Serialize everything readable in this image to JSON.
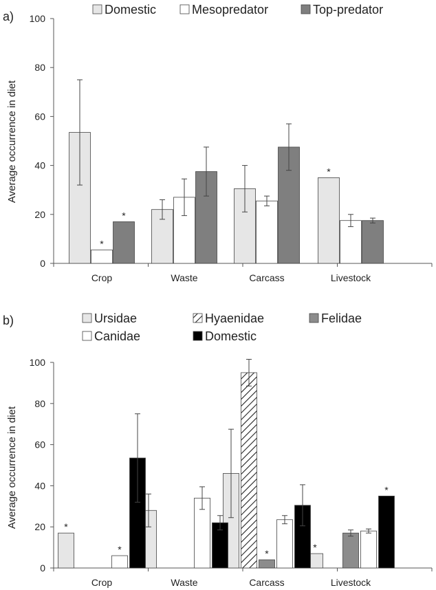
{
  "chart_data": [
    {
      "panel_label": "a)",
      "type": "bar",
      "ylabel": "Average occurrence in diet",
      "ylim": [
        0,
        100
      ],
      "yticks": [
        "0",
        "20",
        "40",
        "60",
        "80",
        "100"
      ],
      "grid": false,
      "legend_position": "top",
      "categories": [
        "Crop",
        "Waste",
        "Carcass",
        "Livestock"
      ],
      "series": [
        {
          "name": "Domestic",
          "color": "#e6e6e6",
          "pattern": "solid",
          "values": [
            53.5,
            22,
            30.5,
            35
          ],
          "err": [
            21.5,
            4,
            9.5,
            0
          ],
          "star": [
            false,
            false,
            false,
            true
          ]
        },
        {
          "name": "Mesopredator",
          "color": "#ffffff",
          "pattern": "solid",
          "values": [
            5.5,
            27,
            25.5,
            17.5
          ],
          "err": [
            0,
            7.5,
            2,
            2.5
          ],
          "star": [
            true,
            false,
            false,
            false
          ]
        },
        {
          "name": "Top-predator",
          "color": "#7f7f7f",
          "pattern": "solid",
          "values": [
            17,
            37.5,
            47.5,
            17.5
          ],
          "err": [
            0,
            10,
            9.5,
            1
          ],
          "star": [
            true,
            false,
            false,
            false
          ]
        }
      ]
    },
    {
      "panel_label": "b)",
      "type": "bar",
      "ylabel": "Average occurrence in diet",
      "ylim": [
        0,
        100
      ],
      "yticks": [
        "0",
        "20",
        "40",
        "60",
        "80",
        "100"
      ],
      "grid": false,
      "legend_position": "top",
      "categories": [
        "Crop",
        "Waste",
        "Carcass",
        "Livestock"
      ],
      "series": [
        {
          "name": "Ursidae",
          "color": "#e6e6e6",
          "pattern": "solid",
          "values": [
            17,
            28,
            46,
            7
          ],
          "err": [
            0,
            8,
            21.5,
            0
          ],
          "star": [
            true,
            false,
            false,
            true
          ]
        },
        {
          "name": "Hyaenidae",
          "color": "#ffffff",
          "pattern": "hatch",
          "values": [
            null,
            null,
            95,
            null
          ],
          "err": [
            0,
            0,
            6.5,
            0
          ],
          "star": [
            false,
            false,
            false,
            false
          ]
        },
        {
          "name": "Felidae",
          "color": "#8c8c8c",
          "pattern": "solid",
          "values": [
            null,
            null,
            4,
            17
          ],
          "err": [
            0,
            0,
            0,
            1.5
          ],
          "star": [
            false,
            false,
            true,
            false
          ]
        },
        {
          "name": "Canidae",
          "color": "#ffffff",
          "pattern": "solid",
          "values": [
            6,
            34,
            23.5,
            18
          ],
          "err": [
            0,
            5.5,
            2,
            1
          ],
          "star": [
            true,
            false,
            false,
            false
          ]
        },
        {
          "name": "Domestic",
          "color": "#000000",
          "pattern": "solid",
          "values": [
            53.5,
            22,
            30.5,
            35
          ],
          "err": [
            21.5,
            3.5,
            10,
            0
          ],
          "star": [
            false,
            false,
            false,
            true
          ]
        }
      ]
    }
  ]
}
